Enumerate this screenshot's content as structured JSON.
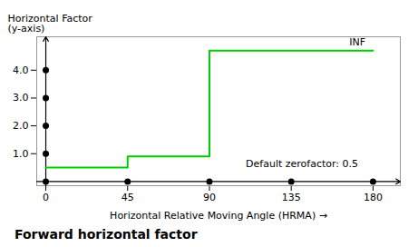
{
  "chart_data": {
    "type": "line",
    "title": "Forward horizontal factor",
    "xlabel": "Horizontal Relative Moving Angle (HRMA)",
    "ylabel": "Horizontal Factor\n(y-axis)",
    "xlim": [
      -5,
      195
    ],
    "ylim": [
      -0.15,
      5.2
    ],
    "xticks": [
      0,
      45,
      90,
      135,
      180
    ],
    "yticks": [
      1,
      2,
      3,
      4
    ],
    "grid": false,
    "series": [
      {
        "type": "line",
        "color": "#00cc00",
        "x": [
          0,
          45,
          45,
          90,
          90,
          180
        ],
        "values": [
          0.5,
          0.5,
          0.9,
          0.9,
          4.7,
          4.7
        ]
      },
      {
        "type": "scatter",
        "color": "#000000",
        "x": [
          0,
          45,
          90,
          135,
          180
        ],
        "values": [
          0,
          0,
          0,
          0,
          0
        ]
      },
      {
        "type": "scatter",
        "color": "#000000",
        "x": [
          0,
          0,
          0,
          0
        ],
        "values": [
          1,
          2,
          3,
          4
        ]
      }
    ],
    "annotations": [
      {
        "text": "INF",
        "x": 167,
        "y": 5.0
      },
      {
        "text": "Default zerofactor: 0.5",
        "x": 110,
        "y": 0.65
      }
    ]
  }
}
